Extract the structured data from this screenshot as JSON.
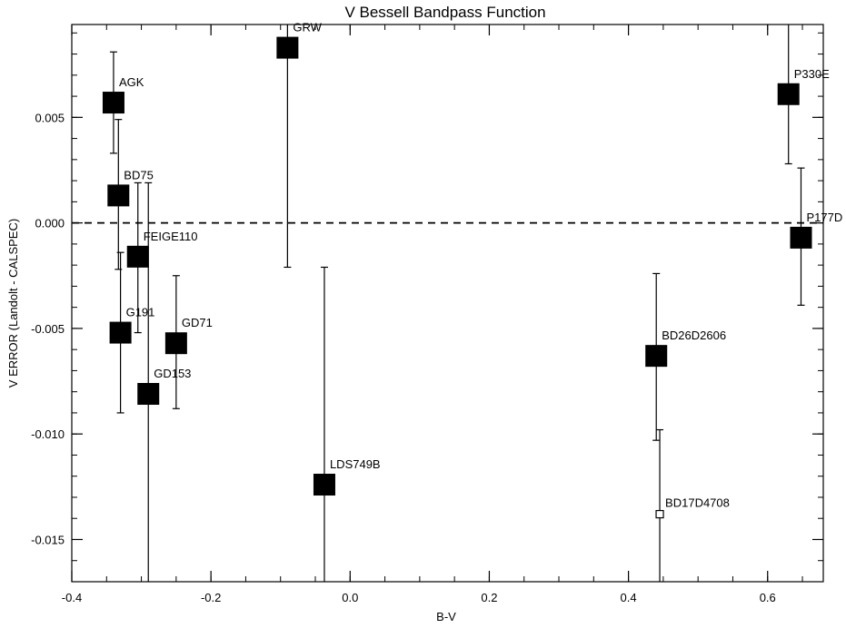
{
  "chart_data": {
    "type": "scatter",
    "title": "V Bessell Bandpass Function",
    "xlabel": "B-V",
    "ylabel": "V ERROR (Landolt - CALSPEC)",
    "xlim": [
      -0.4,
      0.68
    ],
    "ylim": [
      -0.017,
      0.0094
    ],
    "x_ticks": [
      -0.4,
      -0.2,
      0.0,
      0.2,
      0.4,
      0.6
    ],
    "x_tick_labels": [
      "-0.4",
      "-0.2",
      "0.0",
      "0.2",
      "0.4",
      "0.6"
    ],
    "y_ticks": [
      -0.015,
      -0.01,
      -0.005,
      0.0,
      0.005
    ],
    "y_tick_labels": [
      "-0.015",
      "-0.010",
      "-0.005",
      "0.000",
      "0.005"
    ],
    "reference_line": {
      "y": 0.0,
      "style": "dashed"
    },
    "points": [
      {
        "label": "AGK",
        "x": -0.34,
        "y": 0.0057,
        "err_low": 0.0033,
        "err_high": 0.0081,
        "marker": "filled-square"
      },
      {
        "label": "BD75",
        "x": -0.333,
        "y": 0.0013,
        "err_low": -0.0022,
        "err_high": 0.0049,
        "marker": "filled-square"
      },
      {
        "label": "FEIGE110",
        "x": -0.305,
        "y": -0.0016,
        "err_low": -0.0052,
        "err_high": 0.0019,
        "marker": "filled-square"
      },
      {
        "label": "G191",
        "x": -0.33,
        "y": -0.0052,
        "err_low": -0.009,
        "err_high": -0.0014,
        "marker": "filled-square"
      },
      {
        "label": "GD71",
        "x": -0.25,
        "y": -0.0057,
        "err_low": -0.0088,
        "err_high": -0.0025,
        "marker": "filled-square"
      },
      {
        "label": "GD153",
        "x": -0.29,
        "y": -0.0081,
        "err_low": -0.017,
        "err_high": 0.0019,
        "marker": "filled-square"
      },
      {
        "label": "GRW",
        "x": -0.09,
        "y": 0.0083,
        "err_low": -0.0021,
        "err_high": 0.0094,
        "marker": "filled-square"
      },
      {
        "label": "LDS749B",
        "x": -0.037,
        "y": -0.0124,
        "err_low": -0.017,
        "err_high": -0.0021,
        "marker": "filled-square"
      },
      {
        "label": "BD26D2606",
        "x": 0.44,
        "y": -0.0063,
        "err_low": -0.0103,
        "err_high": -0.0024,
        "marker": "filled-square"
      },
      {
        "label": "BD17D4708",
        "x": 0.445,
        "y": -0.0138,
        "err_low": -0.017,
        "err_high": -0.0098,
        "marker": "open-square"
      },
      {
        "label": "P330E",
        "x": 0.63,
        "y": 0.0061,
        "err_low": 0.0028,
        "err_high": 0.0094,
        "marker": "filled-square"
      },
      {
        "label": "P177D",
        "x": 0.648,
        "y": -0.0007,
        "err_low": -0.0039,
        "err_high": 0.0026,
        "marker": "filled-square"
      }
    ]
  }
}
